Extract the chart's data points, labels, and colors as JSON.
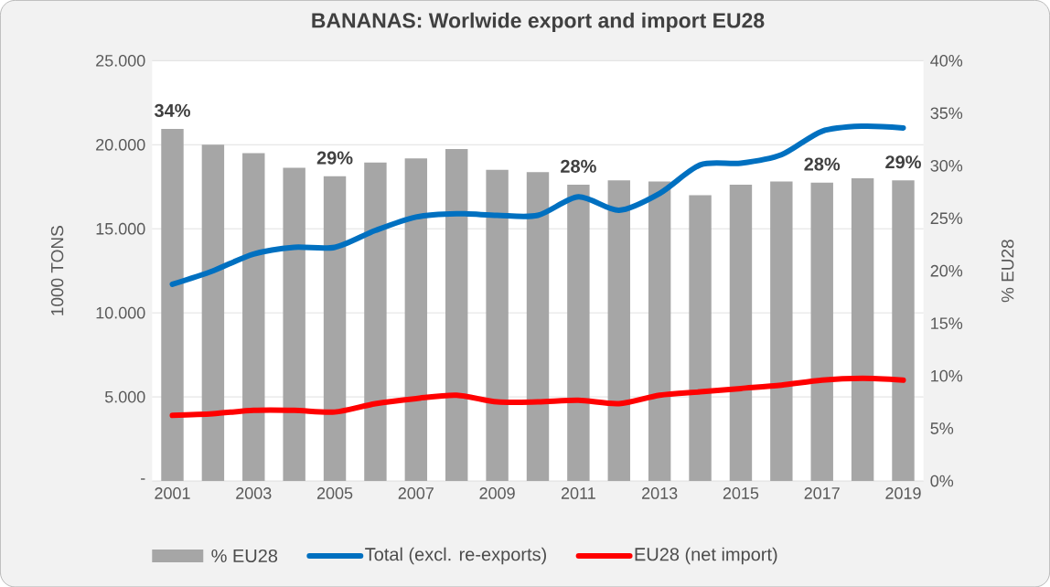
{
  "chart_data": {
    "type": "line",
    "title": "BANANAS: Worlwide export and import EU28",
    "ylabel": "1000 TONS",
    "y2label": "% EU28",
    "categories": [
      "2001",
      null,
      "2003",
      null,
      "2005",
      null,
      "2007",
      null,
      "2009",
      null,
      "2011",
      null,
      "2013",
      null,
      "2015",
      null,
      "2017",
      null,
      "2019"
    ],
    "series": [
      {
        "name": "% EU28",
        "type": "bar",
        "axis": "y2",
        "color": "#a6a6a6",
        "values": [
          33.5,
          32.0,
          31.2,
          29.8,
          29.0,
          30.3,
          30.7,
          31.6,
          29.6,
          29.4,
          28.2,
          28.6,
          28.5,
          27.2,
          28.2,
          28.5,
          28.4,
          28.8,
          28.6
        ],
        "value_labels": [
          "34%",
          null,
          null,
          null,
          "29%",
          null,
          null,
          null,
          null,
          null,
          "28%",
          null,
          null,
          null,
          null,
          null,
          "28%",
          null,
          "29%"
        ]
      },
      {
        "name": "Total (excl. re-exports)",
        "color": "#0070c0",
        "values": [
          11700,
          12500,
          13500,
          13900,
          13900,
          14900,
          15700,
          15900,
          15800,
          15800,
          16900,
          16100,
          17100,
          18800,
          18900,
          19400,
          20800,
          21100,
          21000
        ]
      },
      {
        "name": "EU28 (net import)",
        "color": "#ff0000",
        "values": [
          3900,
          4000,
          4200,
          4200,
          4100,
          4600,
          4900,
          5100,
          4700,
          4700,
          4800,
          4600,
          5100,
          5300,
          5500,
          5700,
          6000,
          6100,
          6000
        ]
      }
    ],
    "ylim": [
      0,
      25000
    ],
    "yticks": [
      {
        "value": 0,
        "label": "-"
      },
      {
        "value": 5000,
        "label": "5.000"
      },
      {
        "value": 10000,
        "label": "10.000"
      },
      {
        "value": 15000,
        "label": "15.000"
      },
      {
        "value": 20000,
        "label": "20.000"
      },
      {
        "value": 25000,
        "label": "25.000"
      }
    ],
    "y2lim": [
      0,
      40
    ],
    "y2ticks": [
      {
        "value": 0,
        "label": "0%"
      },
      {
        "value": 5,
        "label": "5%"
      },
      {
        "value": 10,
        "label": "10%"
      },
      {
        "value": 15,
        "label": "15%"
      },
      {
        "value": 20,
        "label": "20%"
      },
      {
        "value": 25,
        "label": "25%"
      },
      {
        "value": 30,
        "label": "30%"
      },
      {
        "value": 35,
        "label": "35%"
      },
      {
        "value": 40,
        "label": "40%"
      }
    ],
    "grid": "y",
    "legend": "bottom"
  }
}
